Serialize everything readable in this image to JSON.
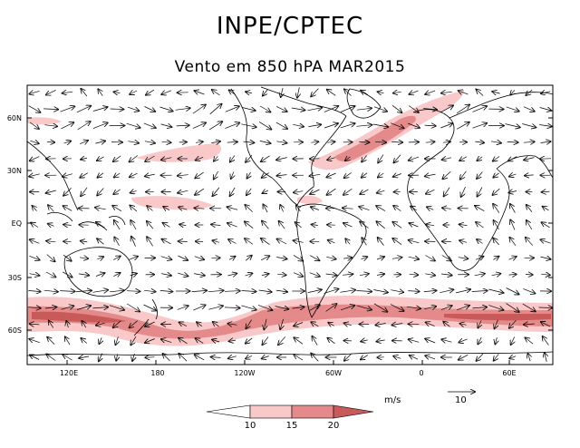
{
  "header": {
    "title": "INPE/CPTEC",
    "subtitle": "Vento em 850 hPA MAR2015"
  },
  "map": {
    "lat_labels": [
      "60N",
      "30N",
      "EQ",
      "30S",
      "60S"
    ],
    "lon_labels": [
      "120E",
      "180",
      "120W",
      "60W",
      "0",
      "60E"
    ],
    "shading_colors": {
      "10-15": "#f9c8c8",
      "15-20": "#e48a8a",
      ">20": "#c85a5a"
    }
  },
  "legend": {
    "unit": "m/s",
    "levels": [
      "10",
      "15",
      "20"
    ],
    "reference_vector_label": "10"
  }
}
